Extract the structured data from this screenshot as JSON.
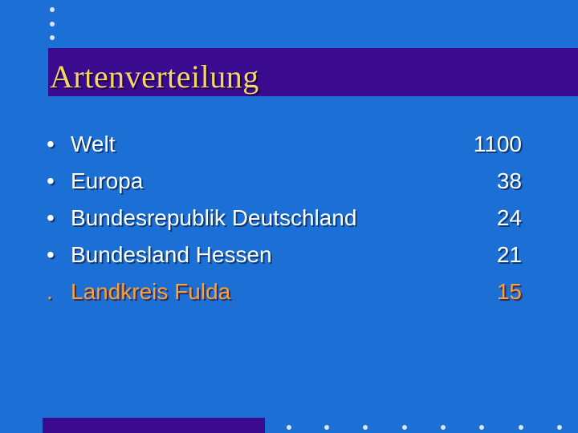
{
  "slide": {
    "title": "Artenverteilung",
    "items": [
      {
        "bullet": "•",
        "label": "Welt",
        "value": "1100"
      },
      {
        "bullet": "•",
        "label": "Europa",
        "value": "38"
      },
      {
        "bullet": "•",
        "label": "Bundesrepublik Deutschland",
        "value": "24"
      },
      {
        "bullet": "•",
        "label": "Bundesland Hessen",
        "value": "21"
      },
      {
        "bullet": ".",
        "label": "Landkreis Fulda",
        "value": "15"
      }
    ]
  },
  "colors": {
    "background": "#1c6fd4",
    "bar": "#3a0b8f",
    "title_text": "#f6d46a",
    "body_text": "#ffffff",
    "highlight_text": "#f2a33a",
    "decor_dots": "#d8e6f5"
  }
}
